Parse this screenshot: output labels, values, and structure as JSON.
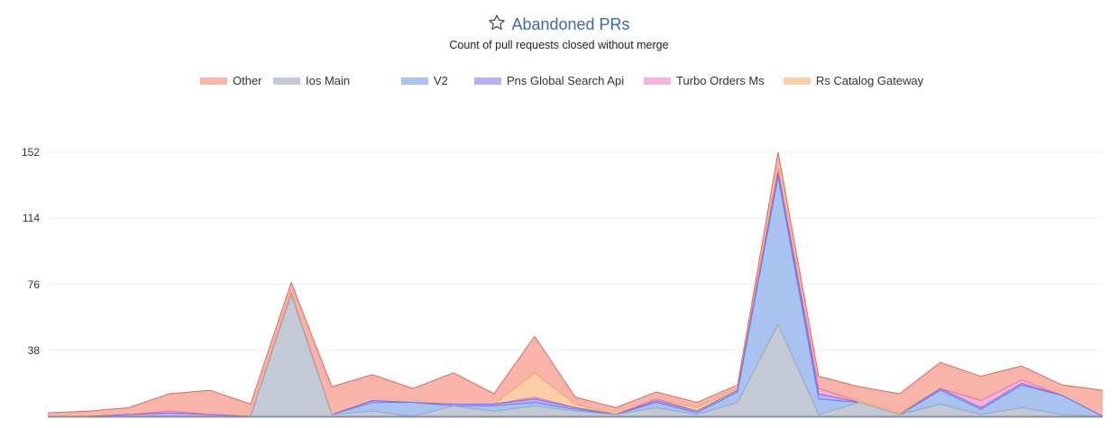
{
  "title": "Abandoned PRs",
  "subtitle": "Count of pull requests closed without merge",
  "icons": {
    "title": "star-outline-icon"
  },
  "chart_data": {
    "type": "area",
    "stacked": true,
    "title": "Abandoned PRs",
    "subtitle": "Count of pull requests closed without merge",
    "xlabel": "",
    "ylabel": "",
    "ylim": [
      0,
      152
    ],
    "yticks": [
      "152",
      "114",
      "76",
      "38"
    ],
    "ytick_values": [
      152,
      114,
      76,
      38
    ],
    "grid": true,
    "legend_position": "top-center",
    "x": [
      1,
      2,
      3,
      4,
      5,
      6,
      7,
      8,
      9,
      10,
      11,
      12,
      13,
      14,
      15,
      16,
      17,
      18,
      19,
      20,
      21,
      22,
      23,
      24,
      25,
      26,
      27
    ],
    "series": [
      {
        "name": "Ios Main",
        "fill": "#c3cad5",
        "stroke": "#9aa5b6",
        "values": [
          0,
          0,
          0,
          0,
          0,
          0,
          70,
          1,
          3,
          0,
          6,
          3,
          6,
          3,
          1,
          5,
          1,
          8,
          53,
          1,
          8,
          1,
          7,
          1,
          5,
          1,
          0
        ]
      },
      {
        "name": "V2",
        "fill": "#a9c2ef",
        "stroke": "#5b86e5",
        "values": [
          0,
          0,
          0,
          0,
          0,
          0,
          0,
          0,
          5,
          8,
          0,
          3,
          2,
          1,
          0,
          3,
          1,
          6,
          85,
          9,
          0,
          0,
          8,
          3,
          13,
          11,
          0
        ]
      },
      {
        "name": "Pns Global Search Api",
        "fill": "#b8b0f3",
        "stroke": "#7c6cf0",
        "values": [
          0,
          0,
          1,
          2,
          1,
          0,
          0,
          0,
          1,
          0,
          1,
          1,
          2,
          1,
          0,
          1,
          1,
          1,
          2,
          3,
          0,
          0,
          1,
          1,
          1,
          0,
          0
        ]
      },
      {
        "name": "Turbo Orders Ms",
        "fill": "#f8b3dc",
        "stroke": "#f06bb5",
        "values": [
          0,
          0,
          0,
          1,
          0,
          0,
          0,
          0,
          0,
          0,
          0,
          0,
          1,
          0,
          0,
          1,
          0,
          0,
          1,
          3,
          0,
          0,
          0,
          4,
          2,
          0,
          0
        ]
      },
      {
        "name": "Rs Catalog Gateway",
        "fill": "#f8cfa6",
        "stroke": "#f3a55e",
        "values": [
          0,
          0,
          0,
          0,
          0,
          0,
          2,
          0,
          0,
          0,
          0,
          0,
          14,
          2,
          0,
          0,
          2,
          1,
          2,
          0,
          1,
          1,
          0,
          0,
          0,
          0,
          0
        ]
      },
      {
        "name": "Other",
        "fill": "#f8b4a8",
        "stroke": "#e4675a",
        "values": [
          2,
          3,
          4,
          10,
          14,
          7,
          5,
          16,
          15,
          8,
          18,
          6,
          21,
          4,
          4,
          4,
          3,
          2,
          9,
          7,
          8,
          11,
          15,
          14,
          8,
          6,
          15
        ]
      }
    ],
    "legend": [
      "Other",
      "Ios Main",
      "V2",
      "Pns Global Search Api",
      "Turbo Orders Ms",
      "Rs Catalog Gateway"
    ]
  }
}
